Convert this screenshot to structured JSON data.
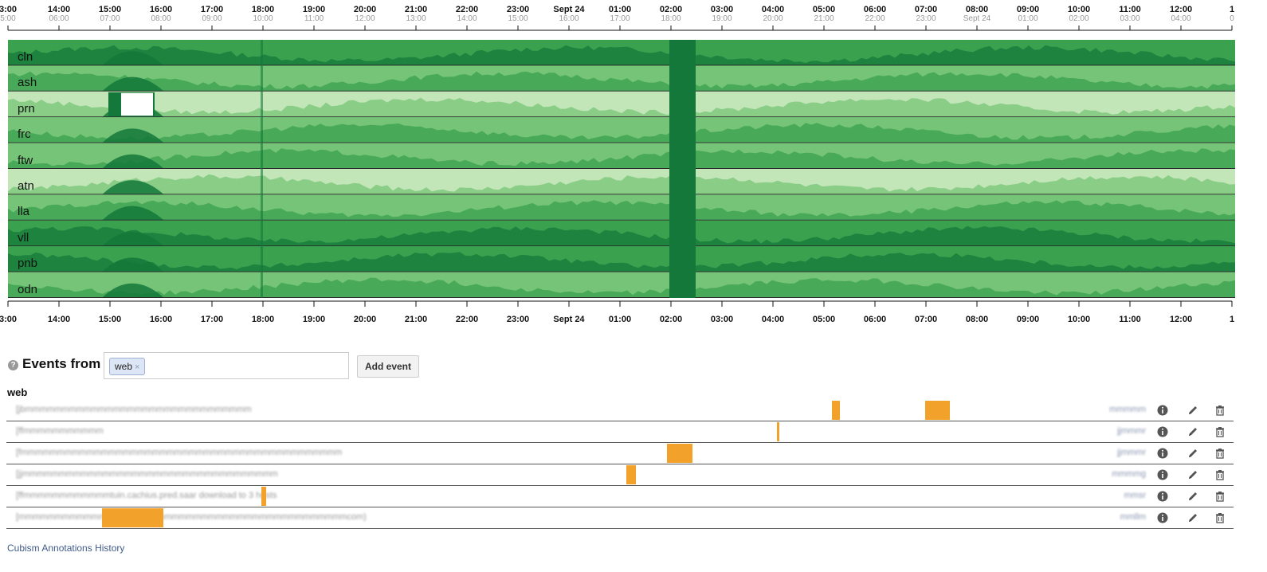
{
  "colors": {
    "band_light": "#c3e6b8",
    "band_mid": "#76c477",
    "band_dark": "#3aa24f",
    "band_darkest": "#14783a",
    "event": "#f2a12a"
  },
  "top_axis": {
    "ticks": [
      {
        "label": "3:00",
        "sub": "5:00"
      },
      {
        "label": "14:00",
        "sub": "06:00"
      },
      {
        "label": "15:00",
        "sub": "07:00"
      },
      {
        "label": "16:00",
        "sub": "08:00"
      },
      {
        "label": "17:00",
        "sub": "09:00"
      },
      {
        "label": "18:00",
        "sub": "10:00"
      },
      {
        "label": "19:00",
        "sub": "11:00"
      },
      {
        "label": "20:00",
        "sub": "12:00"
      },
      {
        "label": "21:00",
        "sub": "13:00"
      },
      {
        "label": "22:00",
        "sub": "14:00"
      },
      {
        "label": "23:00",
        "sub": "15:00"
      },
      {
        "label": "Sept 24",
        "sub": "16:00"
      },
      {
        "label": "01:00",
        "sub": "17:00"
      },
      {
        "label": "02:00",
        "sub": "18:00"
      },
      {
        "label": "03:00",
        "sub": "19:00"
      },
      {
        "label": "04:00",
        "sub": "20:00"
      },
      {
        "label": "05:00",
        "sub": "21:00"
      },
      {
        "label": "06:00",
        "sub": "22:00"
      },
      {
        "label": "07:00",
        "sub": "23:00"
      },
      {
        "label": "08:00",
        "sub": "Sept 24"
      },
      {
        "label": "09:00",
        "sub": "01:00"
      },
      {
        "label": "10:00",
        "sub": "02:00"
      },
      {
        "label": "11:00",
        "sub": "03:00"
      },
      {
        "label": "12:00",
        "sub": "04:00"
      },
      {
        "label": "1",
        "sub": "0"
      }
    ]
  },
  "bottom_axis": {
    "ticks": [
      "3:00",
      "14:00",
      "15:00",
      "16:00",
      "17:00",
      "18:00",
      "19:00",
      "20:00",
      "21:00",
      "22:00",
      "23:00",
      "Sept 24",
      "01:00",
      "02:00",
      "03:00",
      "04:00",
      "05:00",
      "06:00",
      "07:00",
      "08:00",
      "09:00",
      "10:00",
      "11:00",
      "12:00",
      "1"
    ]
  },
  "horizon": {
    "rows": [
      {
        "label": "cln",
        "base": 2
      },
      {
        "label": "ash",
        "base": 1
      },
      {
        "label": "prn",
        "base": 0
      },
      {
        "label": "frc",
        "base": 1
      },
      {
        "label": "ftw",
        "base": 1
      },
      {
        "label": "atn",
        "base": 0
      },
      {
        "label": "lla",
        "base": 1
      },
      {
        "label": "vll",
        "base": 2
      },
      {
        "label": "pnb",
        "base": 2
      },
      {
        "label": "odn",
        "base": 1
      }
    ]
  },
  "controls": {
    "help_icon": "?",
    "title": "Events from",
    "token": "web",
    "token_remove": "×",
    "add_button": "Add event"
  },
  "group_title": "web",
  "events": [
    {
      "name": "[jbmmmmmmmmmmmmmmmmmmmmmmmmmmmmmmm",
      "owner": "mmmmm",
      "bars": [
        {
          "start": 0.673,
          "end": 0.679
        },
        {
          "start": 0.749,
          "end": 0.769
        }
      ]
    },
    {
      "name": "[ffmmmmmmmmmmm",
      "owner": "jjmmmr",
      "bars": [
        {
          "start": 0.628,
          "end": 0.63
        }
      ]
    },
    {
      "name": "[fmmmmmmmmmmmmmmmmmmmmmmmmmmmmmmmmmmmmmmmmmmmm",
      "owner": "jjmmmr",
      "bars": [
        {
          "start": 0.538,
          "end": 0.559
        }
      ]
    },
    {
      "name": "[jjmmmmmmmmmmmmmmmmmmmmmmmmmmmmmmmmmmm",
      "owner": "mmmmg",
      "bars": [
        {
          "start": 0.505,
          "end": 0.513
        }
      ]
    },
    {
      "name": "[ffmmmmmmmmmmmmtuin.cachius.pred.saar download to 3 hosts",
      "owner": "mmsr",
      "bars": [
        {
          "start": 0.208,
          "end": 0.212
        }
      ]
    },
    {
      "name": "[mmmmmmmmmmmmmmmmmmmmmmmmmmmmmmmmmmmmmmmmmmmmmcom)",
      "owner": "mmllm",
      "bars": [
        {
          "start": 0.078,
          "end": 0.128
        }
      ]
    }
  ],
  "icons": {
    "info": "info-icon",
    "edit": "pencil-icon",
    "delete": "trash-icon"
  },
  "footer_link": "Cubism Annotations History"
}
